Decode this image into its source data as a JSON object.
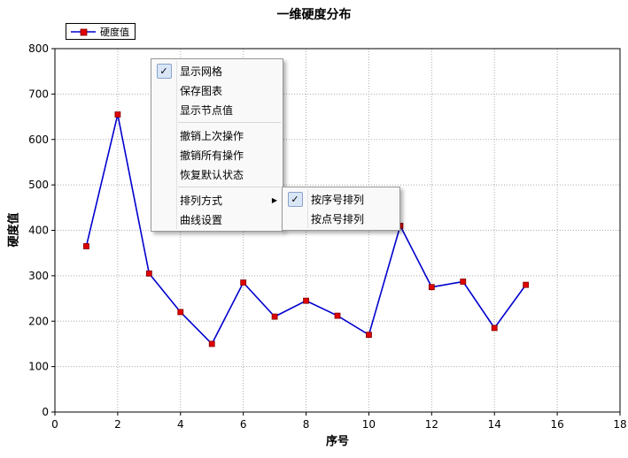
{
  "chart_data": {
    "type": "line",
    "title": "一维硬度分布",
    "xlabel": "序号",
    "ylabel": "硬度值",
    "grid": true,
    "legend_position": "top-left",
    "xlim": [
      0,
      18
    ],
    "ylim": [
      0,
      800
    ],
    "x_ticks": [
      0,
      2,
      4,
      6,
      8,
      10,
      12,
      14,
      16,
      18
    ],
    "y_ticks": [
      0,
      100,
      200,
      300,
      400,
      500,
      600,
      700,
      800
    ],
    "line_color": "#0000cd",
    "marker_color": "#e00000",
    "series": [
      {
        "name": "硬度值",
        "x": [
          1,
          2,
          3,
          4,
          5,
          6,
          7,
          8,
          9,
          10,
          11,
          12,
          13,
          14,
          15
        ],
        "values": [
          365,
          655,
          305,
          220,
          150,
          285,
          210,
          245,
          212,
          170,
          410,
          275,
          287,
          185,
          280
        ]
      }
    ]
  },
  "legend": {
    "label": "硬度值"
  },
  "icons": {
    "check": "✓",
    "submenu_arrow": "▶"
  },
  "context_menu": {
    "items": [
      {
        "label": "显示网格",
        "checked": true
      },
      {
        "label": "保存图表"
      },
      {
        "label": "显示节点值"
      },
      {
        "label": "撤销上次操作"
      },
      {
        "label": "撤销所有操作"
      },
      {
        "label": "恢复默认状态"
      },
      {
        "label": "排列方式",
        "has_submenu": true
      },
      {
        "label": "曲线设置"
      }
    ],
    "submenu_items": [
      {
        "label": "按序号排列",
        "checked": true
      },
      {
        "label": "按点号排列"
      }
    ]
  }
}
